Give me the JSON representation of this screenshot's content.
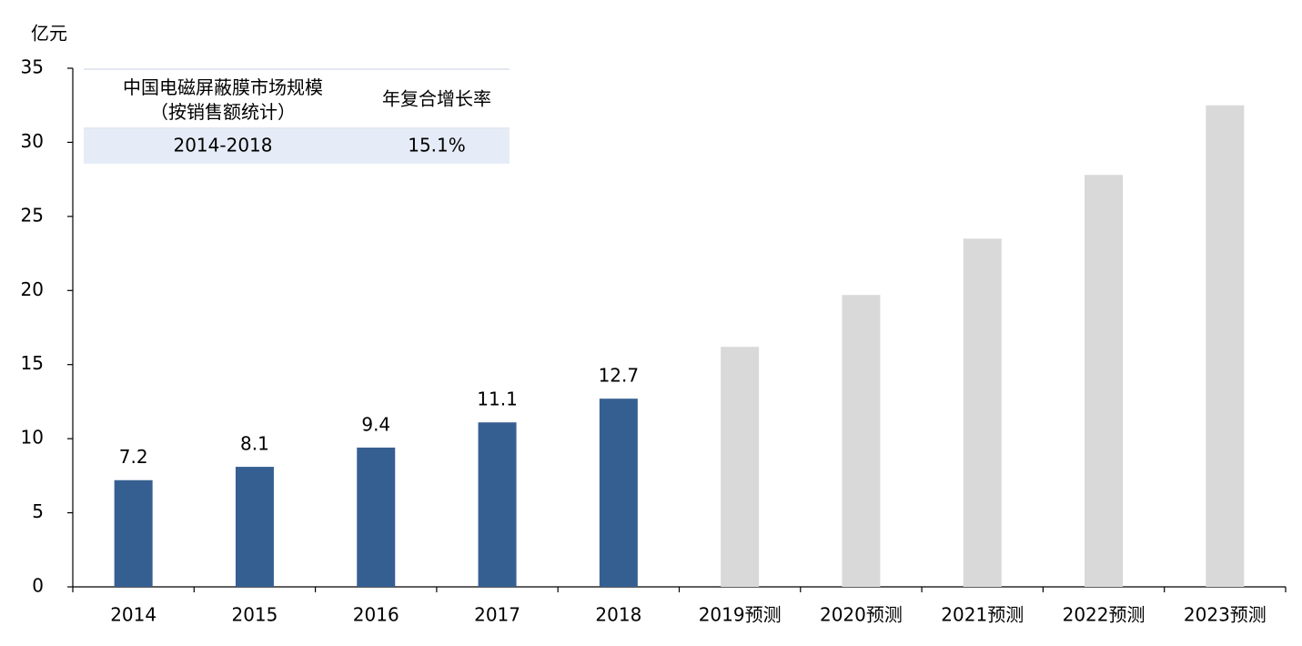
{
  "chart_data": {
    "type": "bar",
    "y_unit": "亿元",
    "categories": [
      "2014",
      "2015",
      "2016",
      "2017",
      "2018",
      "2019预测",
      "2020预测",
      "2021预测",
      "2022预测",
      "2023预测"
    ],
    "values": [
      7.2,
      8.1,
      9.4,
      11.1,
      12.7,
      16.2,
      19.7,
      23.5,
      27.8,
      32.5
    ],
    "colors": [
      "#365f91",
      "#365f91",
      "#365f91",
      "#365f91",
      "#365f91",
      "#d9d9d9",
      "#d9d9d9",
      "#d9d9d9",
      "#d9d9d9",
      "#d9d9d9"
    ],
    "show_value_labels": [
      true,
      true,
      true,
      true,
      true,
      false,
      false,
      false,
      false,
      false
    ],
    "ylim": [
      0,
      35
    ],
    "yticks": [
      0,
      5,
      10,
      15,
      20,
      25,
      30,
      35
    ],
    "grid": false,
    "inset_table": {
      "header": [
        "中国电磁屏蔽膜市场规模\n（按销售额统计）",
        "年复合增长率"
      ],
      "rows": [
        [
          "2014-2018",
          "15.1%"
        ]
      ]
    }
  }
}
